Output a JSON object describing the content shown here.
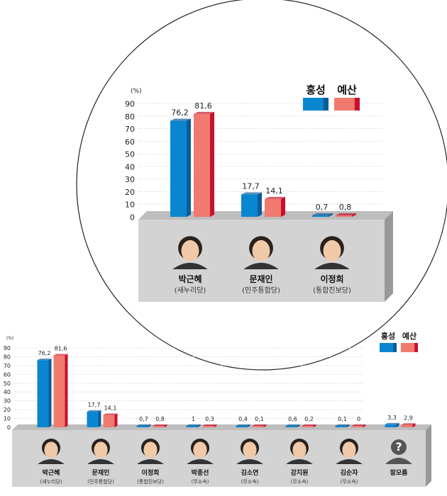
{
  "chart_data": [
    {
      "type": "bar",
      "ylabel": "(%)",
      "ylim": [
        0,
        90
      ],
      "yticks": [
        0,
        10,
        20,
        30,
        40,
        50,
        60,
        70,
        80,
        90
      ],
      "grid": true,
      "legend_placement": "top-right",
      "categories": [
        {
          "name": "박근혜",
          "party": "(새누리당)"
        },
        {
          "name": "문재인",
          "party": "(민주통합당)"
        },
        {
          "name": "이정희",
          "party": "(통합진보당)"
        }
      ],
      "series": [
        {
          "name": "홍성",
          "color": "#0a86d0",
          "values": [
            76.2,
            17.7,
            0.7
          ],
          "labels": [
            "76,2",
            "17,7",
            "0,7"
          ]
        },
        {
          "name": "예산",
          "color": "#f07a6e",
          "values": [
            81.6,
            14.1,
            0.8
          ],
          "labels": [
            "81,6",
            "14,1",
            "0,8"
          ]
        }
      ]
    },
    {
      "type": "bar",
      "ylabel": "(%)",
      "ylim": [
        0,
        90
      ],
      "yticks": [
        0,
        10,
        20,
        30,
        40,
        50,
        60,
        70,
        80,
        90
      ],
      "grid": true,
      "legend_placement": "top-right",
      "categories": [
        {
          "name": "박근혜",
          "party": "(새누리당)"
        },
        {
          "name": "문재인",
          "party": "(민주통합당)"
        },
        {
          "name": "이정희",
          "party": "(통합진보당)"
        },
        {
          "name": "박종선",
          "party": "(무소속)"
        },
        {
          "name": "김소연",
          "party": "(무소속)"
        },
        {
          "name": "강지원",
          "party": "(무소속)"
        },
        {
          "name": "김순자",
          "party": "(무소속)"
        },
        {
          "name": "잘모름",
          "party": ""
        }
      ],
      "series": [
        {
          "name": "홍성",
          "color": "#0a86d0",
          "values": [
            76.2,
            17.7,
            0.7,
            1,
            0.4,
            0.6,
            0.1,
            3.3
          ],
          "labels": [
            "76,2",
            "17,7",
            "0,7",
            "1",
            "0,4",
            "0,6",
            "0,1",
            "3,3"
          ]
        },
        {
          "name": "예산",
          "color": "#f07a6e",
          "values": [
            81.6,
            14.1,
            0.8,
            0.3,
            0.1,
            0.2,
            0,
            2.9
          ],
          "labels": [
            "81,6",
            "14,1",
            "0,8",
            "0,3",
            "0,1",
            "0,2",
            "0",
            "2,9"
          ]
        }
      ]
    }
  ]
}
